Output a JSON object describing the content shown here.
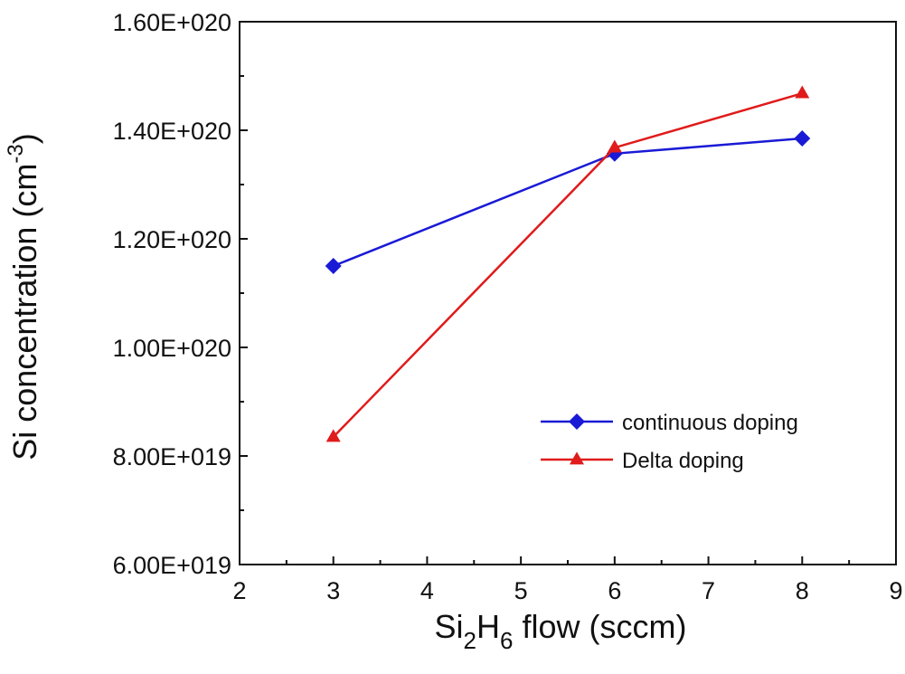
{
  "chart_data": {
    "type": "line",
    "x_axis": {
      "label_main": "Si",
      "label_sub1": "2",
      "label_mid": "H",
      "label_sub2": "6",
      "label_tail": " flow (sccm)",
      "range": [
        2,
        9
      ],
      "ticks": [
        2,
        3,
        4,
        5,
        6,
        7,
        8,
        9
      ],
      "tick_labels": [
        "2",
        "3",
        "4",
        "5",
        "6",
        "7",
        "8",
        "9"
      ]
    },
    "y_axis": {
      "label_main": "Si concentration (cm",
      "label_sup": "-3",
      "label_tail": ")",
      "range": [
        6e+19,
        1.6e+20
      ],
      "ticks": [
        6e+19,
        8e+19,
        1e+20,
        1.2e+20,
        1.4e+20,
        1.6e+20
      ],
      "tick_labels": [
        "6.00E+019",
        "8.00E+019",
        "1.00E+020",
        "1.20E+020",
        "1.40E+020",
        "1.60E+020"
      ]
    },
    "grid": false,
    "legend_position": "lower-right",
    "series": [
      {
        "name": "continuous doping",
        "color": "#1a1ad6",
        "marker": "diamond",
        "x": [
          3,
          6,
          8
        ],
        "y": [
          1.15e+20,
          1.357e+20,
          1.385e+20
        ]
      },
      {
        "name": "Delta doping",
        "color": "#e01b1b",
        "marker": "triangle",
        "x": [
          3,
          6,
          8
        ],
        "y": [
          8.35e+19,
          1.368e+20,
          1.468e+20
        ]
      }
    ]
  }
}
